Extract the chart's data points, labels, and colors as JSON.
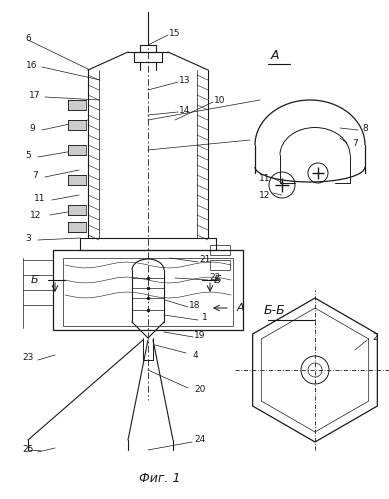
{
  "bg_color": "#ffffff",
  "line_color": "#1a1a1a",
  "fig_title": "Фиг. 1",
  "label_A": "A",
  "label_BB": "Б-Б",
  "label_B_cut": "Б"
}
